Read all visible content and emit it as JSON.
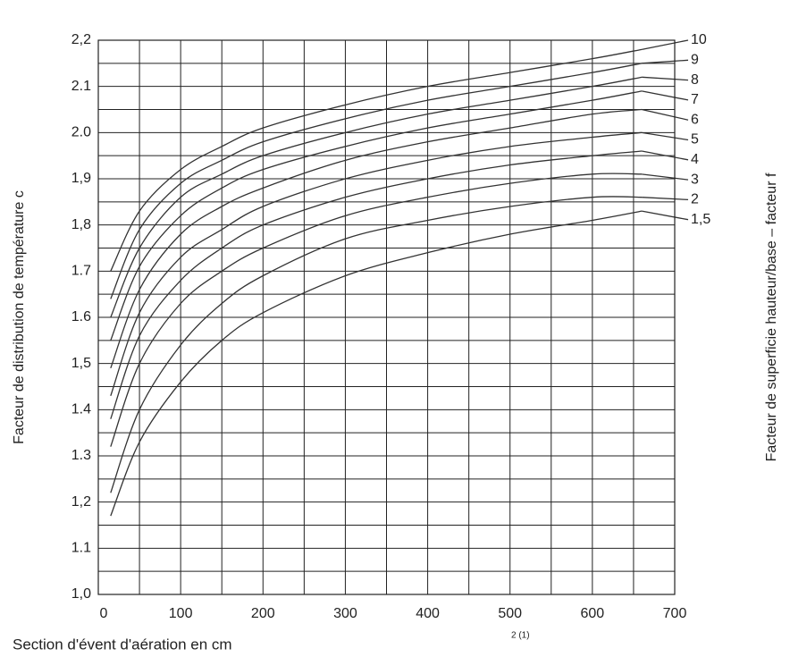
{
  "chart_data": {
    "type": "line",
    "y_label": "Facteur de distribution de température c",
    "y2_label": "Facteur de superficie hauteur/base – facteur f",
    "x_label": "Section d'évent d'aération en cm",
    "x_label_superscript": "2 (1)",
    "x": [
      15,
      50,
      100,
      150,
      200,
      300,
      400,
      500,
      600,
      660
    ],
    "series": [
      {
        "name": "10",
        "color": "#333333",
        "values": [
          1.7,
          1.83,
          1.92,
          1.97,
          2.01,
          2.06,
          2.1,
          2.13,
          2.16,
          2.18
        ]
      },
      {
        "name": "9",
        "color": "#333333",
        "values": [
          1.64,
          1.79,
          1.89,
          1.94,
          1.98,
          2.03,
          2.07,
          2.1,
          2.13,
          2.15
        ]
      },
      {
        "name": "8",
        "color": "#333333",
        "values": [
          1.6,
          1.75,
          1.86,
          1.91,
          1.95,
          2.0,
          2.04,
          2.07,
          2.1,
          2.12
        ]
      },
      {
        "name": "7",
        "color": "#333333",
        "values": [
          1.55,
          1.71,
          1.82,
          1.88,
          1.92,
          1.97,
          2.01,
          2.04,
          2.07,
          2.09
        ]
      },
      {
        "name": "6",
        "color": "#333333",
        "values": [
          1.49,
          1.66,
          1.78,
          1.84,
          1.88,
          1.94,
          1.98,
          2.01,
          2.04,
          2.05
        ]
      },
      {
        "name": "5",
        "color": "#333333",
        "values": [
          1.43,
          1.61,
          1.73,
          1.79,
          1.84,
          1.9,
          1.94,
          1.97,
          1.99,
          2.0
        ]
      },
      {
        "name": "4",
        "color": "#333333",
        "values": [
          1.38,
          1.56,
          1.68,
          1.75,
          1.8,
          1.86,
          1.9,
          1.93,
          1.95,
          1.96
        ]
      },
      {
        "name": "3",
        "color": "#333333",
        "values": [
          1.32,
          1.5,
          1.63,
          1.7,
          1.75,
          1.82,
          1.86,
          1.89,
          1.91,
          1.91
        ]
      },
      {
        "name": "2",
        "color": "#333333",
        "values": [
          1.22,
          1.4,
          1.54,
          1.63,
          1.69,
          1.77,
          1.81,
          1.84,
          1.86,
          1.86
        ]
      },
      {
        "name": "1,5",
        "color": "#333333",
        "values": [
          1.17,
          1.33,
          1.46,
          1.55,
          1.61,
          1.69,
          1.74,
          1.78,
          1.81,
          1.83
        ]
      }
    ],
    "xlim": [
      0,
      700
    ],
    "ylim": [
      1.0,
      2.2
    ],
    "xticks": [
      0,
      100,
      200,
      300,
      400,
      500,
      600,
      700
    ],
    "yticks": [
      {
        "value": 1.0,
        "label": "1,0"
      },
      1.1,
      {
        "value": 1.2,
        "label": "1,2"
      },
      1.3,
      1.4,
      {
        "value": 1.5,
        "label": "1,5"
      },
      1.6,
      1.7,
      {
        "value": 1.8,
        "label": "1,8"
      },
      {
        "value": 1.9,
        "label": "1,9"
      },
      {
        "value": 2.0,
        "label": "2.0"
      },
      2.1,
      {
        "value": 2.2,
        "label": "2,2"
      }
    ],
    "xgrid": [
      0,
      50,
      100,
      150,
      200,
      250,
      300,
      350,
      400,
      450,
      500,
      550,
      600,
      650,
      700
    ],
    "ygrid": [
      1.0,
      1.05,
      1.1,
      1.15,
      1.2,
      1.25,
      1.3,
      1.35,
      1.4,
      1.45,
      1.5,
      1.55,
      1.6,
      1.65,
      1.7,
      1.75,
      1.8,
      1.85,
      1.9,
      1.95,
      2.0,
      2.05,
      2.1,
      2.15,
      2.2
    ],
    "grid": true
  }
}
